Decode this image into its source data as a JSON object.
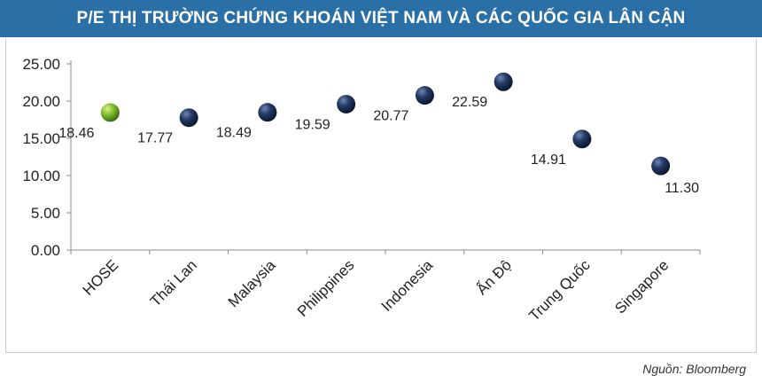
{
  "title": "P/E THỊ TRƯỜNG CHỨNG KHOÁN VIỆT NAM VÀ CÁC QUỐC GIA LÂN CẬN",
  "source": "Nguồn: Bloomberg",
  "colors": {
    "title_bg": "#2a6fa5",
    "highlight_marker": "#7cbb2a",
    "default_marker": "#1b2f55"
  },
  "chart_data": {
    "type": "scatter",
    "title": "P/E THỊ TRƯỜNG CHỨNG KHOÁN VIỆT NAM VÀ CÁC QUỐC GIA LÂN CẬN",
    "xlabel": "",
    "ylabel": "",
    "categories": [
      "HOSE",
      "Thái Lan",
      "Malaysia",
      "Philippines",
      "Indonesia",
      "Ấn Độ",
      "Trung Quốc",
      "Singapore"
    ],
    "values": [
      18.46,
      17.77,
      18.49,
      19.59,
      20.77,
      22.59,
      14.91,
      11.3
    ],
    "value_labels": [
      "18.46",
      "17.77",
      "18.49",
      "19.59",
      "20.77",
      "22.59",
      "14.91",
      "11.30"
    ],
    "highlight": "HOSE",
    "ylim": [
      0,
      25
    ],
    "yticks": [
      "0.00",
      "5.00",
      "10.00",
      "15.00",
      "20.00",
      "25.00"
    ],
    "grid": false,
    "legend": "none"
  }
}
